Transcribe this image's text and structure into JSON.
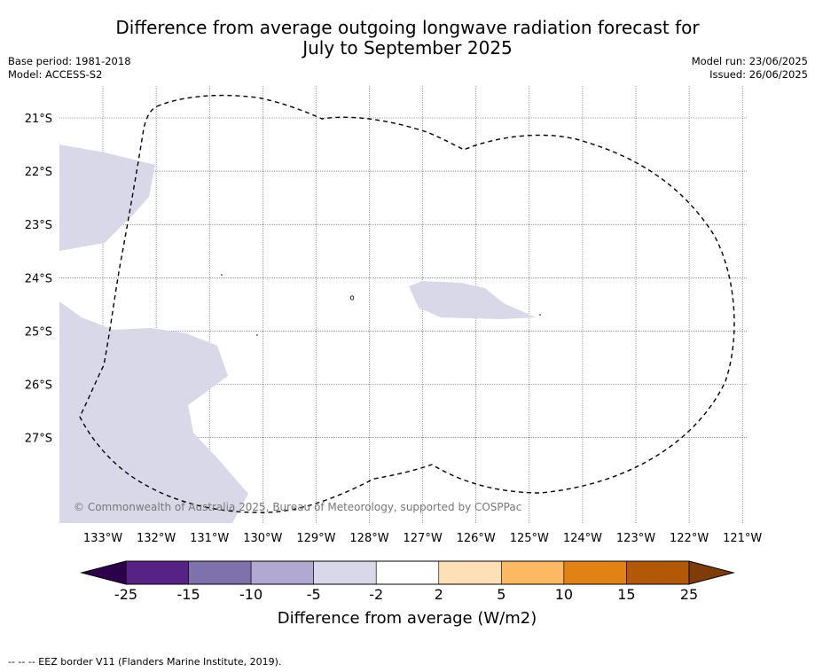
{
  "title": {
    "line1": "Difference from average outgoing longwave radiation forecast for",
    "line2": "July to September 2025"
  },
  "meta_left": {
    "base_period": "Base period: 1981-2018",
    "model": "Model: ACCESS-S2"
  },
  "meta_right": {
    "model_run": "Model run: 23/06/2025",
    "issued": "Issued: 26/06/2025"
  },
  "map": {
    "lat_labels": [
      {
        "lat": -21,
        "text": "21°S"
      },
      {
        "lat": -22,
        "text": "22°S"
      },
      {
        "lat": -23,
        "text": "23°S"
      },
      {
        "lat": -24,
        "text": "24°S"
      },
      {
        "lat": -25,
        "text": "25°S"
      },
      {
        "lat": -26,
        "text": "26°S"
      },
      {
        "lat": -27,
        "text": "27°S"
      }
    ],
    "lon_labels": [
      {
        "lon": -133,
        "text": "133°W"
      },
      {
        "lon": -132,
        "text": "132°W"
      },
      {
        "lon": -131,
        "text": "131°W"
      },
      {
        "lon": -130,
        "text": "130°W"
      },
      {
        "lon": -129,
        "text": "129°W"
      },
      {
        "lon": -128,
        "text": "128°W"
      },
      {
        "lon": -127,
        "text": "127°W"
      },
      {
        "lon": -126,
        "text": "126°W"
      },
      {
        "lon": -125,
        "text": "125°W"
      },
      {
        "lon": -124,
        "text": "124°W"
      },
      {
        "lon": -123,
        "text": "123°W"
      },
      {
        "lon": -122,
        "text": "122°W"
      },
      {
        "lon": -121,
        "text": "121°W"
      }
    ],
    "copyright": "© Commonwealth of Australia 2025, Bureau of Meteorology, supported by COSPPac",
    "anomaly_category": "-5 to -2",
    "anomaly_color": "#d8d8e8",
    "eez_style": "dashed"
  },
  "colorbar": {
    "ticks": [
      "-25",
      "-15",
      "-10",
      "-5",
      "-2",
      "2",
      "5",
      "10",
      "15",
      "25"
    ],
    "colors": [
      "#562285",
      "#7f71ab",
      "#b1a9d1",
      "#d8d8e8",
      "#ffffff",
      "#fee0b6",
      "#fdb863",
      "#e08214",
      "#b35806"
    ],
    "extend_low_color": "#2d004b",
    "extend_high_color": "#7f3b08",
    "label": "Difference from average (W/m2)"
  },
  "footer": {
    "legend": "--  --  -- EEZ border V11 (Flanders Marine Institute, 2019)."
  }
}
